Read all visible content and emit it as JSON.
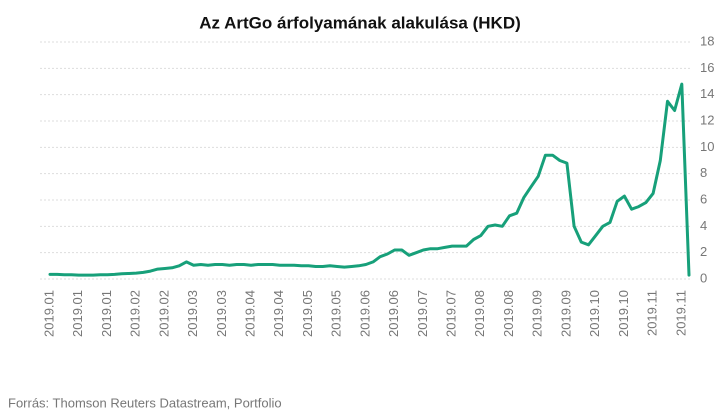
{
  "chart_data": {
    "type": "line",
    "title": "Az ArtGo árfolyamának alakulása (HKD)",
    "source": "Forrás: Thomson Reuters Datastream, Portfolio",
    "categories": [
      "2019.01",
      null,
      null,
      null,
      "2019.01",
      null,
      null,
      null,
      "2019.01",
      null,
      null,
      null,
      "2019.02",
      null,
      null,
      null,
      "2019.02",
      null,
      null,
      null,
      "2019.03",
      null,
      null,
      null,
      "2019.03",
      null,
      null,
      null,
      "2019.04",
      null,
      null,
      null,
      "2019.04",
      null,
      null,
      null,
      "2019.05",
      null,
      null,
      null,
      "2019.05",
      null,
      null,
      null,
      "2019.06",
      null,
      null,
      null,
      "2019.06",
      null,
      null,
      null,
      "2019.07",
      null,
      null,
      null,
      "2019.07",
      null,
      null,
      null,
      "2019.08",
      null,
      null,
      null,
      "2019.08",
      null,
      null,
      null,
      "2019.09",
      null,
      null,
      null,
      "2019.09",
      null,
      null,
      null,
      "2019.10",
      null,
      null,
      null,
      "2019.10",
      null,
      null,
      null,
      "2019.11",
      null,
      null,
      null,
      "2019.11",
      null
    ],
    "series": [
      {
        "name": "ArtGo",
        "color": "#17a07a",
        "values": [
          0.35,
          0.35,
          0.33,
          0.33,
          0.3,
          0.3,
          0.3,
          0.32,
          0.33,
          0.35,
          0.4,
          0.42,
          0.45,
          0.5,
          0.6,
          0.75,
          0.8,
          0.85,
          1.0,
          1.3,
          1.05,
          1.1,
          1.05,
          1.1,
          1.1,
          1.05,
          1.1,
          1.1,
          1.05,
          1.1,
          1.1,
          1.1,
          1.05,
          1.05,
          1.05,
          1.0,
          1.0,
          0.95,
          0.95,
          1.0,
          0.95,
          0.9,
          0.95,
          1.0,
          1.1,
          1.3,
          1.7,
          1.9,
          2.2,
          2.2,
          1.8,
          2.0,
          2.2,
          2.3,
          2.3,
          2.4,
          2.5,
          2.5,
          2.5,
          3.0,
          3.3,
          4.0,
          4.1,
          4.0,
          4.8,
          5.0,
          6.2,
          7.0,
          7.8,
          9.4,
          9.4,
          9.0,
          8.8,
          4.0,
          2.8,
          2.6,
          3.3,
          4.0,
          4.3,
          5.9,
          6.3,
          5.3,
          5.5,
          5.8,
          6.5,
          9.0,
          13.5,
          12.8,
          14.8,
          0.3
        ]
      }
    ],
    "ylim": [
      0,
      18
    ],
    "yticks": [
      0,
      2,
      4,
      6,
      8,
      10,
      12,
      14,
      16,
      18
    ],
    "y_axis_side": "right",
    "grid": true
  }
}
